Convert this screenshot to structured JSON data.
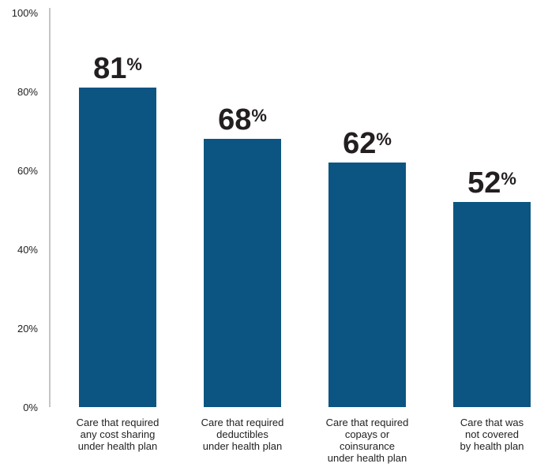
{
  "chart_data": {
    "type": "bar",
    "categories": [
      [
        "Care that required",
        "any cost sharing",
        "under health plan"
      ],
      [
        "Care that required",
        "deductibles",
        "under health plan"
      ],
      [
        "Care that required",
        "copays or",
        "coinsurance",
        "under health plan"
      ],
      [
        "Care that was",
        "not covered",
        "by health plan"
      ]
    ],
    "values": [
      81,
      68,
      62,
      52
    ],
    "value_labels": [
      "81",
      "68",
      "62",
      "52"
    ],
    "value_suffix": "%",
    "y_ticks": [
      "0%",
      "20%",
      "40%",
      "60%",
      "80%",
      "100%"
    ],
    "ylim": [
      0,
      100
    ],
    "grid": false,
    "colors": {
      "bar": "#0c5582",
      "axis": "#8c8c8c",
      "text": "#231f20"
    }
  }
}
